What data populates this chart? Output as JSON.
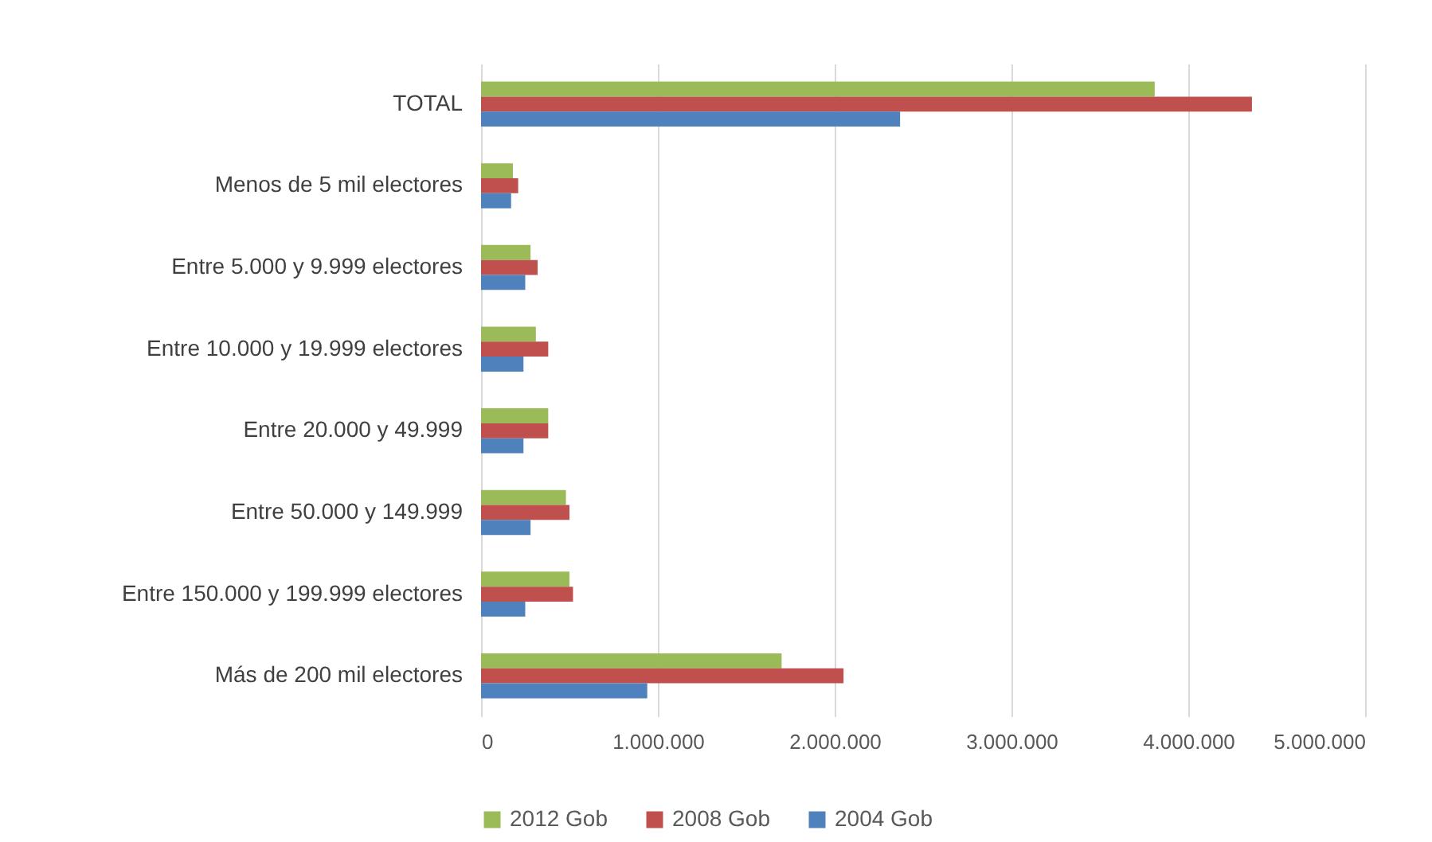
{
  "chart_data": {
    "type": "bar",
    "orientation": "horizontal",
    "categories": [
      "TOTAL",
      "Menos de 5 mil electores",
      "Entre 5.000 y 9.999 electores",
      "Entre 10.000 y 19.999 electores",
      "Entre 20.000 y 49.999",
      "Entre 50.000 y 149.999",
      "Entre 150.000 y 199.999  electores",
      "Más de 200 mil electores"
    ],
    "series": [
      {
        "name": "2012 Gob",
        "color": "#9bbb59",
        "values": [
          3810000,
          180000,
          280000,
          310000,
          380000,
          480000,
          500000,
          1700000
        ]
      },
      {
        "name": "2008 Gob",
        "color": "#c0504d",
        "values": [
          4360000,
          210000,
          320000,
          380000,
          380000,
          500000,
          520000,
          2050000
        ]
      },
      {
        "name": "2004 Gob",
        "color": "#4f81bd",
        "values": [
          2370000,
          170000,
          250000,
          240000,
          240000,
          280000,
          250000,
          940000
        ]
      }
    ],
    "xlim": [
      0,
      5000000
    ],
    "xticks": [
      0,
      {
        "value": 1000000,
        "label": "1.000.000"
      },
      {
        "value": 2000000,
        "label": "2.000.000"
      },
      {
        "value": 3000000,
        "label": "3.000.000"
      },
      {
        "value": 4000000,
        "label": "4.000.000"
      },
      {
        "value": 5000000,
        "label": "5.000.000"
      }
    ],
    "grid": "x",
    "legend": "bottom"
  }
}
